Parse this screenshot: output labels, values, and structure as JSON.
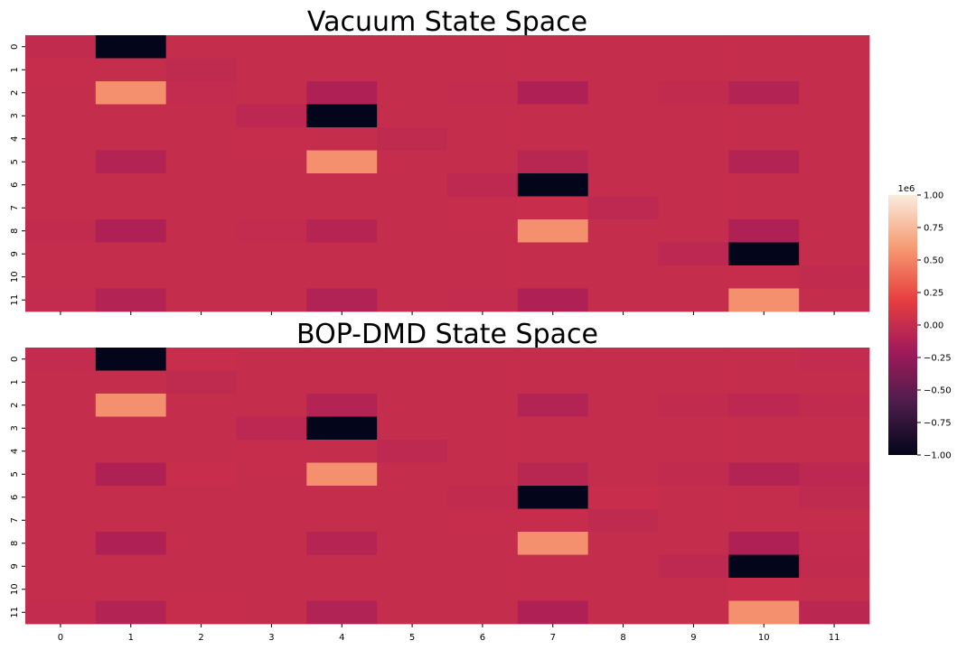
{
  "chart_data": {
    "type": "heatmap",
    "multiplier_label": "1e6",
    "colorbar": {
      "vmin": -1.0,
      "vmax": 1.0,
      "ticks": [
        "1.00",
        "0.75",
        "0.50",
        "0.25",
        "0.00",
        "−0.25",
        "−0.50",
        "−0.75",
        "−1.00"
      ],
      "colormap_stops": [
        "#03051a",
        "#4c1d4b",
        "#a11a5b",
        "#e83f3f",
        "#f69c73",
        "#faebdd"
      ]
    },
    "x_tick_labels": [
      "0",
      "1",
      "2",
      "3",
      "4",
      "5",
      "6",
      "7",
      "8",
      "9",
      "10",
      "11"
    ],
    "y_tick_labels": [
      "0",
      "1",
      "2",
      "3",
      "4",
      "5",
      "6",
      "7",
      "8",
      "9",
      "10",
      "11"
    ],
    "panels": [
      {
        "title": "Vacuum State Space",
        "values": [
          [
            -0.02,
            -1.0,
            0,
            0,
            0,
            0,
            0,
            0,
            0,
            0,
            0,
            0
          ],
          [
            0.01,
            0,
            -0.03,
            0,
            0,
            0,
            0,
            0,
            0,
            0,
            0,
            0
          ],
          [
            0,
            0.55,
            -0.01,
            0,
            -0.12,
            0,
            -0.01,
            -0.12,
            0,
            -0.02,
            -0.1,
            0
          ],
          [
            0,
            0,
            0,
            -0.05,
            -1.0,
            0,
            0,
            0,
            0,
            0,
            0,
            0
          ],
          [
            0,
            0,
            0,
            0.01,
            0,
            -0.03,
            0,
            0,
            0,
            0,
            0,
            0
          ],
          [
            0,
            -0.1,
            0,
            0,
            0.55,
            0,
            0,
            -0.07,
            0,
            0,
            -0.1,
            0
          ],
          [
            0,
            0,
            0,
            0,
            0,
            0,
            -0.04,
            -1.0,
            0,
            0,
            0,
            0
          ],
          [
            0,
            0,
            0,
            0,
            0,
            0,
            0.01,
            0.02,
            -0.04,
            0,
            0,
            0
          ],
          [
            -0.02,
            -0.12,
            0,
            -0.01,
            -0.09,
            0,
            0,
            0.55,
            0,
            0,
            -0.12,
            0
          ],
          [
            0,
            0,
            0,
            0,
            0,
            0,
            0,
            0,
            0,
            -0.05,
            -1.0,
            0
          ],
          [
            0,
            0,
            0,
            0,
            0,
            0,
            0,
            0,
            0,
            0,
            0.01,
            -0.02
          ],
          [
            -0.01,
            -0.1,
            0,
            0,
            -0.11,
            0,
            -0.01,
            -0.12,
            0,
            0,
            0.55,
            0
          ]
        ]
      },
      {
        "title": "BOP-DMD State Space",
        "values": [
          [
            -0.01,
            -1.0,
            0.02,
            0,
            0,
            0,
            0,
            0,
            0,
            0,
            0,
            -0.01
          ],
          [
            0,
            0,
            -0.03,
            0,
            0,
            0,
            0,
            0,
            0,
            0,
            0,
            0
          ],
          [
            0,
            0.55,
            0,
            0,
            -0.1,
            0,
            0,
            -0.1,
            0,
            -0.02,
            -0.05,
            -0.02
          ],
          [
            0,
            0,
            0,
            -0.05,
            -1.0,
            0,
            0,
            0,
            0,
            0,
            0,
            0
          ],
          [
            0,
            0,
            0,
            0.01,
            0,
            -0.04,
            0,
            0,
            0,
            0,
            0,
            0
          ],
          [
            0,
            -0.12,
            0.02,
            0,
            0.55,
            0,
            0,
            -0.07,
            0,
            -0.02,
            -0.1,
            -0.05
          ],
          [
            0,
            0,
            0,
            0,
            0,
            0,
            -0.02,
            -1.0,
            0.02,
            0,
            0,
            -0.03
          ],
          [
            0,
            0,
            0,
            0,
            0,
            0,
            0.01,
            0.01,
            -0.03,
            0,
            0,
            0
          ],
          [
            0,
            -0.12,
            0,
            0,
            -0.09,
            0,
            0,
            0.55,
            0,
            0,
            -0.12,
            -0.01
          ],
          [
            0,
            0,
            0,
            0,
            0,
            0,
            0,
            0,
            0,
            -0.04,
            -1.0,
            -0.02
          ],
          [
            0,
            0,
            0,
            0,
            0,
            0,
            0,
            0,
            0,
            0,
            0.02,
            0
          ],
          [
            -0.01,
            -0.1,
            0.01,
            0,
            -0.11,
            0,
            0,
            -0.12,
            0,
            0,
            0.55,
            -0.06
          ]
        ]
      }
    ]
  }
}
